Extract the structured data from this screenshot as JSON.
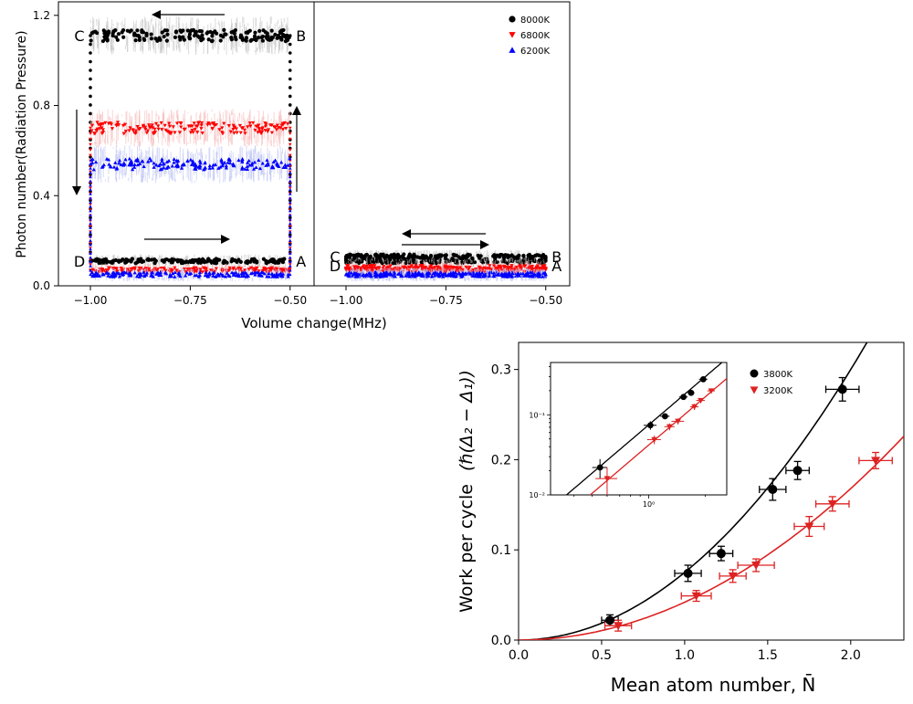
{
  "chart_data": [
    {
      "type": "scatter",
      "title": "",
      "ylabel": "Photon number(Radiation Pressure)",
      "xlabel": "Volume change(MHz)",
      "x_ticks": [
        "−1.00",
        "−0.75",
        "−0.50"
      ],
      "y_ticks": [
        "0.0",
        "0.4",
        "0.8",
        "1.2"
      ],
      "xlim": [
        -1.08,
        -0.44
      ],
      "ylim": [
        0,
        1.26
      ],
      "grid": false,
      "legend_position": "top-right",
      "panels": [
        {
          "series": [
            {
              "name": "8000K",
              "color": "#000000",
              "marker": "circle",
              "low": 0.11,
              "high": 1.11
            },
            {
              "name": "6800K",
              "color": "#ff0000",
              "marker": "triangle-down",
              "low": 0.07,
              "high": 0.7
            },
            {
              "name": "6200K",
              "color": "#0000ff",
              "marker": "triangle-up",
              "low": 0.05,
              "high": 0.54
            }
          ],
          "corner_labels": [
            {
              "text": "C",
              "x": -1.0,
              "y": 1.11
            },
            {
              "text": "B",
              "x": -0.5,
              "y": 1.11
            },
            {
              "text": "D",
              "x": -1.0,
              "y": 0.11
            },
            {
              "text": "A",
              "x": -0.5,
              "y": 0.11
            }
          ]
        },
        {
          "series": [
            {
              "name": "8000K",
              "color": "#000000",
              "marker": "circle",
              "low": 0.11,
              "high": 0.13
            },
            {
              "name": "6800K",
              "color": "#ff0000",
              "marker": "triangle-down",
              "low": 0.07,
              "high": 0.08
            },
            {
              "name": "6200K",
              "color": "#0000ff",
              "marker": "triangle-up",
              "low": 0.05,
              "high": 0.05
            }
          ],
          "corner_labels": [
            {
              "text": "C",
              "x": -1.0,
              "y": 0.13
            },
            {
              "text": "B",
              "x": -0.5,
              "y": 0.13
            },
            {
              "text": "D",
              "x": -1.0,
              "y": 0.09
            },
            {
              "text": "A",
              "x": -0.5,
              "y": 0.09
            }
          ]
        }
      ],
      "legend": [
        "8000K",
        "6800K",
        "6200K"
      ]
    },
    {
      "type": "scatter",
      "title": "",
      "xlabel": "Mean atom number, N̄",
      "ylabel": "Work per cycle",
      "ylabel_units": "(ℏ(Δ₂ − Δ₁))",
      "x_ticks": [
        "0.0",
        "0.5",
        "1.0",
        "1.5",
        "2.0"
      ],
      "y_ticks": [
        "0.0",
        "0.1",
        "0.2",
        "0.3"
      ],
      "xlim": [
        0,
        2.32
      ],
      "ylim": [
        0,
        0.33
      ],
      "grid": false,
      "legend_position": "top-right",
      "series": [
        {
          "name": "3800K",
          "color": "#000000",
          "marker": "circle",
          "x": [
            0.55,
            1.02,
            1.22,
            1.53,
            1.68,
            1.95
          ],
          "y": [
            0.022,
            0.074,
            0.096,
            0.167,
            0.188,
            0.278
          ],
          "xerr": [
            0.05,
            0.08,
            0.07,
            0.08,
            0.07,
            0.1
          ],
          "yerr": [
            0.006,
            0.009,
            0.008,
            0.012,
            0.01,
            0.013
          ],
          "fit_coefficient": 0.075
        },
        {
          "name": "3200K",
          "color": "#dd2222",
          "marker": "triangle-down",
          "x": [
            0.6,
            1.07,
            1.29,
            1.43,
            1.75,
            1.89,
            2.15
          ],
          "y": [
            0.016,
            0.049,
            0.071,
            0.083,
            0.126,
            0.151,
            0.199
          ],
          "xerr": [
            0.08,
            0.09,
            0.08,
            0.11,
            0.09,
            0.1,
            0.1
          ],
          "yerr": [
            0.006,
            0.006,
            0.007,
            0.007,
            0.011,
            0.008,
            0.009
          ],
          "fit_coefficient": 0.042
        }
      ],
      "legend": [
        "3800K",
        "3200K"
      ],
      "inset": {
        "type": "scatter",
        "xscale": "log",
        "yscale": "log",
        "x_ticks": [
          "10⁰"
        ],
        "y_ticks": [
          "10⁻²",
          "10⁻¹"
        ],
        "xlim": [
          0.3,
          2.6
        ],
        "ylim": [
          0.01,
          0.45
        ]
      }
    }
  ]
}
